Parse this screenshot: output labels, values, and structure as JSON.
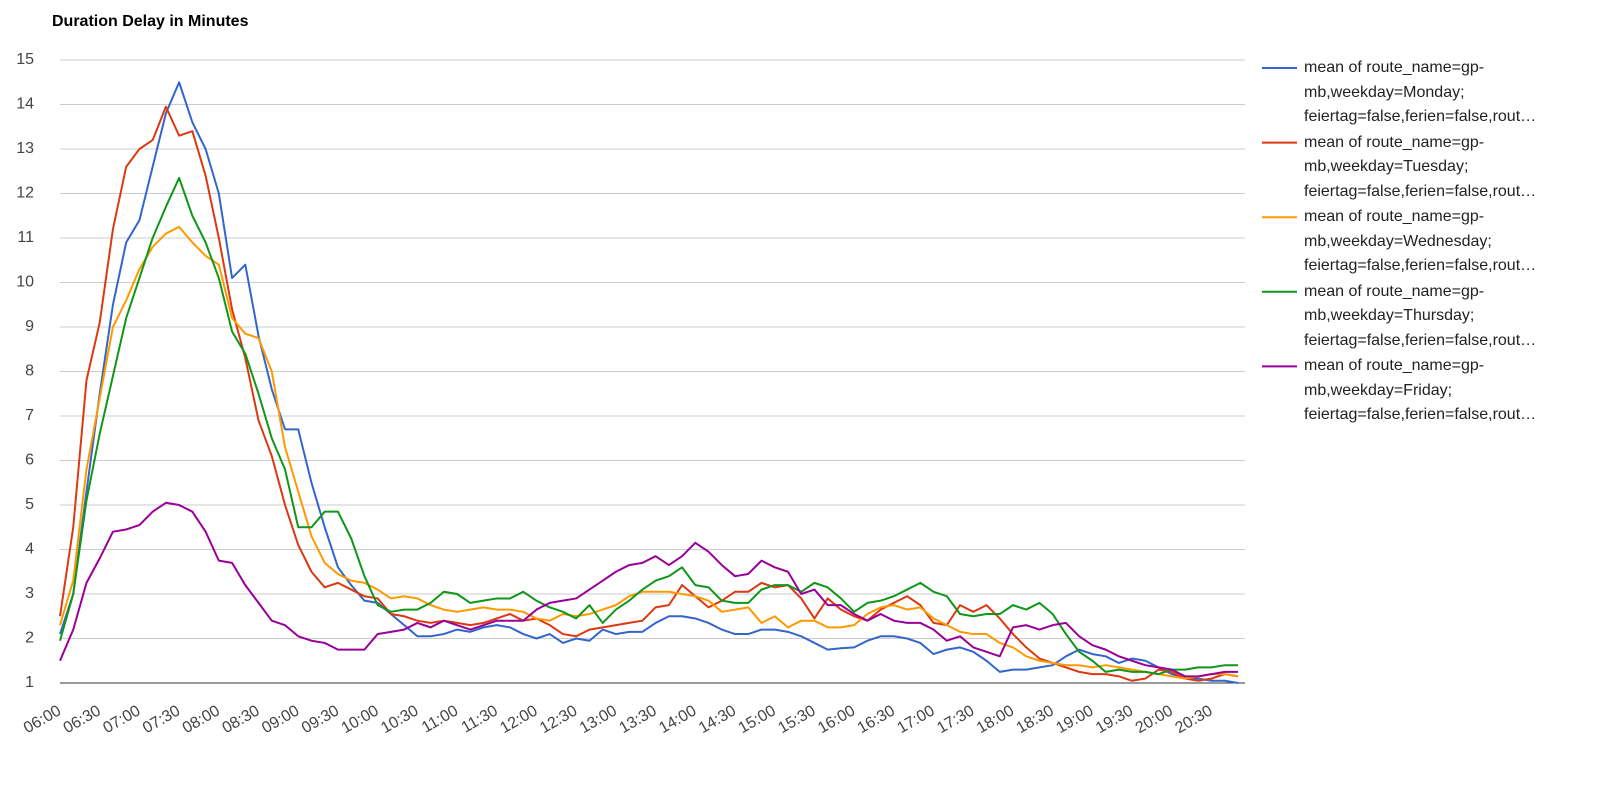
{
  "chart_data": {
    "type": "line",
    "title": "Duration Delay in Minutes",
    "categories": [
      "06:00",
      null,
      null,
      "06:30",
      null,
      null,
      "07:00",
      null,
      null,
      "07:30",
      null,
      null,
      "08:00",
      null,
      null,
      "08:30",
      null,
      null,
      "09:00",
      null,
      null,
      "09:30",
      null,
      null,
      "10:00",
      null,
      null,
      "10:30",
      null,
      null,
      "11:00",
      null,
      null,
      "11:30",
      null,
      null,
      "12:00",
      null,
      null,
      "12:30",
      null,
      null,
      "13:00",
      null,
      null,
      "13:30",
      null,
      null,
      "14:00",
      null,
      null,
      "14:30",
      null,
      null,
      "15:00",
      null,
      null,
      "15:30",
      null,
      null,
      "16:00",
      null,
      null,
      "16:30",
      null,
      null,
      "17:00",
      null,
      null,
      "17:30",
      null,
      null,
      "18:00",
      null,
      null,
      "18:30",
      null,
      null,
      "19:00",
      null,
      null,
      "19:30",
      null,
      null,
      "20:00",
      null,
      null,
      "20:30",
      null,
      null
    ],
    "series": [
      {
        "name": "mean of route_name=gp-mb,weekday=Monday; feiertag=false,ferien=false,rout…",
        "color": "#3366cc",
        "values": [
          2.1,
          3.0,
          5.3,
          7.5,
          9.5,
          10.9,
          11.4,
          12.6,
          13.8,
          14.5,
          13.6,
          13.0,
          12.0,
          10.1,
          10.4,
          8.8,
          7.6,
          6.7,
          6.7,
          5.5,
          4.5,
          3.6,
          3.2,
          2.85,
          2.8,
          2.55,
          2.3,
          2.05,
          2.05,
          2.1,
          2.2,
          2.15,
          2.25,
          2.3,
          2.25,
          2.1,
          2.0,
          2.1,
          1.9,
          2.0,
          1.95,
          2.2,
          2.1,
          2.15,
          2.15,
          2.35,
          2.5,
          2.5,
          2.45,
          2.35,
          2.2,
          2.1,
          2.1,
          2.2,
          2.2,
          2.15,
          2.05,
          1.9,
          1.75,
          1.78,
          1.8,
          1.95,
          2.05,
          2.05,
          2.0,
          1.9,
          1.65,
          1.75,
          1.8,
          1.7,
          1.5,
          1.25,
          1.3,
          1.3,
          1.35,
          1.4,
          1.6,
          1.75,
          1.65,
          1.6,
          1.45,
          1.55,
          1.5,
          1.35,
          1.2,
          1.1,
          1.1,
          1.05,
          1.05,
          1.0
        ]
      },
      {
        "name": "mean of route_name=gp-mb,weekday=Tuesday; feiertag=false,ferien=false,rout…",
        "color": "#dc3912",
        "values": [
          2.5,
          4.5,
          7.8,
          9.1,
          11.2,
          12.6,
          13.0,
          13.2,
          13.95,
          13.3,
          13.4,
          12.4,
          11.0,
          9.4,
          8.3,
          6.9,
          6.1,
          5.0,
          4.1,
          3.5,
          3.15,
          3.25,
          3.1,
          2.95,
          2.9,
          2.55,
          2.5,
          2.4,
          2.35,
          2.4,
          2.35,
          2.3,
          2.35,
          2.45,
          2.55,
          2.4,
          2.45,
          2.3,
          2.1,
          2.05,
          2.2,
          2.25,
          2.3,
          2.35,
          2.4,
          2.7,
          2.75,
          3.2,
          2.95,
          2.7,
          2.85,
          3.05,
          3.05,
          3.25,
          3.15,
          3.2,
          2.9,
          2.45,
          2.9,
          2.65,
          2.5,
          2.4,
          2.65,
          2.8,
          2.95,
          2.75,
          2.35,
          2.3,
          2.75,
          2.6,
          2.75,
          2.45,
          2.1,
          1.8,
          1.55,
          1.45,
          1.35,
          1.25,
          1.2,
          1.2,
          1.15,
          1.05,
          1.1,
          1.3,
          1.25,
          1.1,
          1.05,
          1.1,
          1.2,
          1.15
        ]
      },
      {
        "name": "mean of route_name=gp-mb,weekday=Wednesday; feiertag=false,ferien=false,rout…",
        "color": "#ff9900",
        "values": [
          2.3,
          3.3,
          5.8,
          7.4,
          9.0,
          9.6,
          10.3,
          10.8,
          11.1,
          11.25,
          10.9,
          10.6,
          10.4,
          9.2,
          8.85,
          8.75,
          8.0,
          6.3,
          5.3,
          4.3,
          3.7,
          3.45,
          3.3,
          3.25,
          3.1,
          2.9,
          2.95,
          2.9,
          2.75,
          2.65,
          2.6,
          2.65,
          2.7,
          2.65,
          2.65,
          2.6,
          2.45,
          2.4,
          2.55,
          2.5,
          2.55,
          2.65,
          2.75,
          2.95,
          3.05,
          3.05,
          3.05,
          3.0,
          2.95,
          2.85,
          2.6,
          2.65,
          2.7,
          2.35,
          2.5,
          2.25,
          2.4,
          2.4,
          2.25,
          2.25,
          2.3,
          2.55,
          2.7,
          2.75,
          2.65,
          2.7,
          2.45,
          2.3,
          2.15,
          2.1,
          2.1,
          1.9,
          1.8,
          1.6,
          1.5,
          1.45,
          1.4,
          1.4,
          1.35,
          1.4,
          1.35,
          1.3,
          1.25,
          1.2,
          1.15,
          1.1,
          1.15,
          1.2,
          1.2,
          1.15
        ]
      },
      {
        "name": "mean of route_name=gp-mb,weekday=Thursday; feiertag=false,ferien=false,rout…",
        "color": "#109618",
        "values": [
          1.95,
          3.0,
          5.1,
          6.6,
          7.9,
          9.2,
          10.1,
          11.0,
          11.7,
          12.35,
          11.5,
          10.9,
          10.1,
          8.9,
          8.4,
          7.5,
          6.5,
          5.8,
          4.5,
          4.5,
          4.85,
          4.85,
          4.25,
          3.4,
          2.75,
          2.6,
          2.65,
          2.65,
          2.8,
          3.05,
          3.0,
          2.8,
          2.85,
          2.9,
          2.9,
          3.05,
          2.85,
          2.7,
          2.6,
          2.45,
          2.75,
          2.35,
          2.65,
          2.85,
          3.1,
          3.3,
          3.4,
          3.6,
          3.2,
          3.15,
          2.85,
          2.8,
          2.8,
          3.1,
          3.2,
          3.2,
          3.05,
          3.25,
          3.15,
          2.9,
          2.6,
          2.8,
          2.85,
          2.95,
          3.1,
          3.25,
          3.05,
          2.95,
          2.55,
          2.5,
          2.55,
          2.55,
          2.75,
          2.65,
          2.8,
          2.55,
          2.1,
          1.7,
          1.5,
          1.25,
          1.3,
          1.25,
          1.25,
          1.2,
          1.3,
          1.3,
          1.35,
          1.35,
          1.4,
          1.4
        ]
      },
      {
        "name": "mean of route_name=gp-mb,weekday=Friday; feiertag=false,ferien=false,rout…",
        "color": "#990099",
        "values": [
          1.5,
          2.2,
          3.25,
          3.8,
          4.4,
          4.45,
          4.55,
          4.85,
          5.05,
          5.0,
          4.85,
          4.4,
          3.75,
          3.7,
          3.2,
          2.8,
          2.4,
          2.3,
          2.05,
          1.95,
          1.9,
          1.75,
          1.75,
          1.75,
          2.1,
          2.15,
          2.2,
          2.35,
          2.25,
          2.4,
          2.3,
          2.2,
          2.3,
          2.4,
          2.4,
          2.4,
          2.65,
          2.8,
          2.85,
          2.9,
          3.1,
          3.3,
          3.5,
          3.65,
          3.7,
          3.85,
          3.65,
          3.85,
          4.15,
          3.95,
          3.65,
          3.4,
          3.45,
          3.75,
          3.6,
          3.5,
          3.0,
          3.1,
          2.75,
          2.75,
          2.55,
          2.4,
          2.55,
          2.4,
          2.35,
          2.35,
          2.2,
          1.95,
          2.05,
          1.8,
          1.7,
          1.6,
          2.25,
          2.3,
          2.2,
          2.3,
          2.35,
          2.05,
          1.85,
          1.75,
          1.6,
          1.5,
          1.4,
          1.35,
          1.3,
          1.15,
          1.15,
          1.2,
          1.25,
          1.25
        ]
      }
    ],
    "ylim": [
      1,
      15
    ],
    "yticks": [
      1,
      2,
      3,
      4,
      5,
      6,
      7,
      8,
      9,
      10,
      11,
      12,
      13,
      14,
      15
    ],
    "grid": true,
    "legend": "right"
  }
}
